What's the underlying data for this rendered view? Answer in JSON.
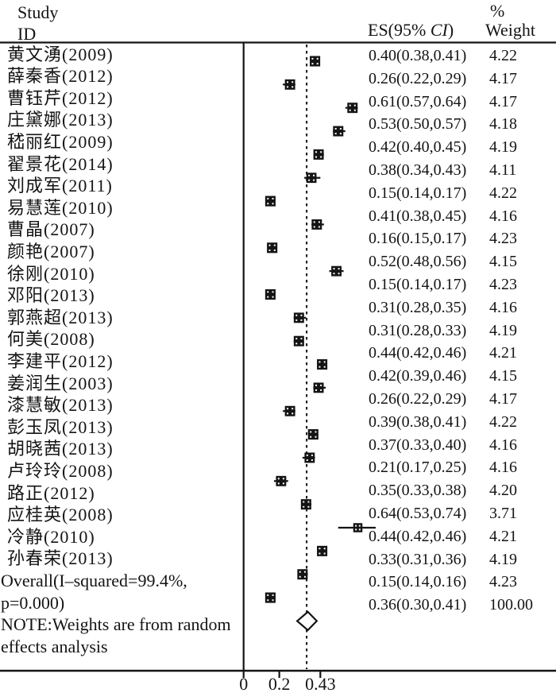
{
  "ink_color": "#141414",
  "background_color": "#ffffff",
  "header": {
    "study_line1": "Study",
    "study_line2": "ID",
    "es_col_prefix": "ES(95% ",
    "es_col_ci": "CI",
    "es_col_suffix": ")",
    "percent_symbol": "%",
    "weight_label": "Weight"
  },
  "note": {
    "line1": "NOTE:Weights are from random",
    "line2": "effects analysis"
  },
  "chart_data": {
    "type": "scatter",
    "subtype": "forest-plot",
    "title": "",
    "xlabel": "",
    "ylabel": "",
    "legend": "none",
    "grid": false,
    "x_axis": {
      "ticks": [
        {
          "value": 0,
          "label": "0"
        },
        {
          "value": 0.2,
          "label": "0.2"
        },
        {
          "value": 0.43,
          "label": "0.43"
        }
      ]
    },
    "reference_line_value": 0.36,
    "studies": [
      {
        "label": "黄文湧(2009)",
        "es": 0.4,
        "ci_low": 0.38,
        "ci_high": 0.41,
        "es_text": "0.40(0.38,0.41)",
        "weight": 4.22,
        "weight_text": "4.22"
      },
      {
        "label": "薛秦香(2012)",
        "es": 0.26,
        "ci_low": 0.22,
        "ci_high": 0.29,
        "es_text": "0.26(0.22,0.29)",
        "weight": 4.17,
        "weight_text": "4.17"
      },
      {
        "label": "曹钰芹(2012)",
        "es": 0.61,
        "ci_low": 0.57,
        "ci_high": 0.64,
        "es_text": "0.61(0.57,0.64)",
        "weight": 4.17,
        "weight_text": "4.17"
      },
      {
        "label": "庄黛娜(2013)",
        "es": 0.53,
        "ci_low": 0.5,
        "ci_high": 0.57,
        "es_text": "0.53(0.50,0.57)",
        "weight": 4.18,
        "weight_text": "4.18"
      },
      {
        "label": "嵇丽红(2009)",
        "es": 0.42,
        "ci_low": 0.4,
        "ci_high": 0.45,
        "es_text": "0.42(0.40,0.45)",
        "weight": 4.19,
        "weight_text": "4.19"
      },
      {
        "label": "翟景花(2014)",
        "es": 0.38,
        "ci_low": 0.34,
        "ci_high": 0.43,
        "es_text": "0.38(0.34,0.43)",
        "weight": 4.11,
        "weight_text": "4.11"
      },
      {
        "label": "刘成军(2011)",
        "es": 0.15,
        "ci_low": 0.14,
        "ci_high": 0.17,
        "es_text": "0.15(0.14,0.17)",
        "weight": 4.22,
        "weight_text": "4.22"
      },
      {
        "label": "易慧莲(2010)",
        "es": 0.41,
        "ci_low": 0.38,
        "ci_high": 0.45,
        "es_text": "0.41(0.38,0.45)",
        "weight": 4.16,
        "weight_text": "4.16"
      },
      {
        "label": "曹晶(2007)",
        "es": 0.16,
        "ci_low": 0.15,
        "ci_high": 0.17,
        "es_text": "0.16(0.15,0.17)",
        "weight": 4.23,
        "weight_text": "4.23"
      },
      {
        "label": "颜艳(2007)",
        "es": 0.52,
        "ci_low": 0.48,
        "ci_high": 0.56,
        "es_text": "0.52(0.48,0.56)",
        "weight": 4.15,
        "weight_text": "4.15"
      },
      {
        "label": "徐刚(2010)",
        "es": 0.15,
        "ci_low": 0.14,
        "ci_high": 0.17,
        "es_text": "0.15(0.14,0.17)",
        "weight": 4.23,
        "weight_text": "4.23"
      },
      {
        "label": "邓阳(2013)",
        "es": 0.31,
        "ci_low": 0.28,
        "ci_high": 0.35,
        "es_text": "0.31(0.28,0.35)",
        "weight": 4.16,
        "weight_text": "4.16"
      },
      {
        "label": "郭燕超(2013)",
        "es": 0.31,
        "ci_low": 0.28,
        "ci_high": 0.33,
        "es_text": "0.31(0.28,0.33)",
        "weight": 4.19,
        "weight_text": "4.19"
      },
      {
        "label": "何美(2008)",
        "es": 0.44,
        "ci_low": 0.42,
        "ci_high": 0.46,
        "es_text": "0.44(0.42,0.46)",
        "weight": 4.21,
        "weight_text": "4.21"
      },
      {
        "label": "李建平(2012)",
        "es": 0.42,
        "ci_low": 0.39,
        "ci_high": 0.46,
        "es_text": "0.42(0.39,0.46)",
        "weight": 4.15,
        "weight_text": "4.15"
      },
      {
        "label": "姜润生(2003)",
        "es": 0.26,
        "ci_low": 0.22,
        "ci_high": 0.29,
        "es_text": "0.26(0.22,0.29)",
        "weight": 4.17,
        "weight_text": "4.17"
      },
      {
        "label": "漆慧敏(2013)",
        "es": 0.39,
        "ci_low": 0.38,
        "ci_high": 0.41,
        "es_text": "0.39(0.38,0.41)",
        "weight": 4.22,
        "weight_text": "4.22"
      },
      {
        "label": "彭玉凤(2013)",
        "es": 0.37,
        "ci_low": 0.33,
        "ci_high": 0.4,
        "es_text": "0.37(0.33,0.40)",
        "weight": 4.16,
        "weight_text": "4.16"
      },
      {
        "label": "胡晓茜(2013)",
        "es": 0.21,
        "ci_low": 0.17,
        "ci_high": 0.25,
        "es_text": "0.21(0.17,0.25)",
        "weight": 4.16,
        "weight_text": "4.16"
      },
      {
        "label": "卢玲玲(2008)",
        "es": 0.35,
        "ci_low": 0.33,
        "ci_high": 0.38,
        "es_text": "0.35(0.33,0.38)",
        "weight": 4.2,
        "weight_text": "4.20"
      },
      {
        "label": "路正(2012)",
        "es": 0.64,
        "ci_low": 0.53,
        "ci_high": 0.74,
        "es_text": "0.64(0.53,0.74)",
        "weight": 3.71,
        "weight_text": "3.71"
      },
      {
        "label": "应桂英(2008)",
        "es": 0.44,
        "ci_low": 0.42,
        "ci_high": 0.46,
        "es_text": "0.44(0.42,0.46)",
        "weight": 4.21,
        "weight_text": "4.21"
      },
      {
        "label": "冷静(2010)",
        "es": 0.33,
        "ci_low": 0.31,
        "ci_high": 0.36,
        "es_text": "0.33(0.31,0.36)",
        "weight": 4.19,
        "weight_text": "4.19"
      },
      {
        "label": "孙春荣(2013)",
        "es": 0.15,
        "ci_low": 0.14,
        "ci_high": 0.16,
        "es_text": "0.15(0.14,0.16)",
        "weight": 4.23,
        "weight_text": "4.23"
      }
    ],
    "overall": {
      "label_line1": "Overall(I–squared=99.4%,",
      "label_line2": "p=0.000)",
      "es": 0.36,
      "ci_low": 0.3,
      "ci_high": 0.41,
      "es_text": "0.36(0.30,0.41)",
      "weight": 100.0,
      "weight_text": "100.00"
    }
  }
}
